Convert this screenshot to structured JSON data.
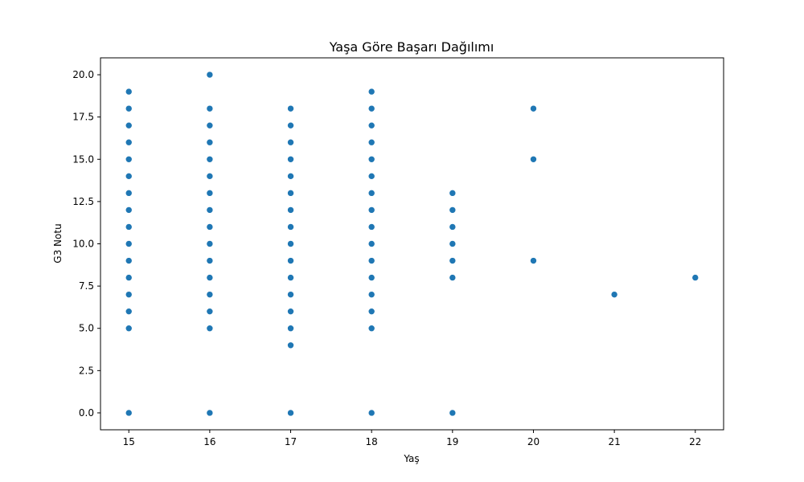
{
  "chart_data": {
    "type": "scatter",
    "title": "Yaşa Göre Başarı Dağılımı",
    "xlabel": "Yaş",
    "ylabel": "G3 Notu",
    "xlim": [
      14.65,
      22.35
    ],
    "ylim": [
      -1.0,
      21.0
    ],
    "xticks": [
      15,
      16,
      17,
      18,
      19,
      20,
      21,
      22
    ],
    "xtick_labels": [
      "15",
      "16",
      "17",
      "18",
      "19",
      "20",
      "21",
      "22"
    ],
    "yticks": [
      0,
      2.5,
      5,
      7.5,
      10,
      12.5,
      15,
      17.5,
      20
    ],
    "ytick_labels": [
      "0.0",
      "2.5",
      "5.0",
      "7.5",
      "10.0",
      "12.5",
      "15.0",
      "17.5",
      "20.0"
    ],
    "grid": false,
    "marker_color": "#1f77b4",
    "series": [
      {
        "points": [
          [
            15,
            0
          ],
          [
            15,
            5
          ],
          [
            15,
            6
          ],
          [
            15,
            7
          ],
          [
            15,
            8
          ],
          [
            15,
            9
          ],
          [
            15,
            10
          ],
          [
            15,
            11
          ],
          [
            15,
            12
          ],
          [
            15,
            13
          ],
          [
            15,
            14
          ],
          [
            15,
            15
          ],
          [
            15,
            16
          ],
          [
            15,
            17
          ],
          [
            15,
            18
          ],
          [
            15,
            19
          ],
          [
            16,
            0
          ],
          [
            16,
            5
          ],
          [
            16,
            6
          ],
          [
            16,
            7
          ],
          [
            16,
            8
          ],
          [
            16,
            9
          ],
          [
            16,
            10
          ],
          [
            16,
            11
          ],
          [
            16,
            12
          ],
          [
            16,
            13
          ],
          [
            16,
            14
          ],
          [
            16,
            15
          ],
          [
            16,
            16
          ],
          [
            16,
            17
          ],
          [
            16,
            18
          ],
          [
            16,
            20
          ],
          [
            17,
            0
          ],
          [
            17,
            4
          ],
          [
            17,
            5
          ],
          [
            17,
            6
          ],
          [
            17,
            7
          ],
          [
            17,
            8
          ],
          [
            17,
            9
          ],
          [
            17,
            10
          ],
          [
            17,
            11
          ],
          [
            17,
            12
          ],
          [
            17,
            13
          ],
          [
            17,
            14
          ],
          [
            17,
            15
          ],
          [
            17,
            16
          ],
          [
            17,
            17
          ],
          [
            17,
            18
          ],
          [
            18,
            0
          ],
          [
            18,
            5
          ],
          [
            18,
            6
          ],
          [
            18,
            7
          ],
          [
            18,
            8
          ],
          [
            18,
            9
          ],
          [
            18,
            10
          ],
          [
            18,
            11
          ],
          [
            18,
            12
          ],
          [
            18,
            13
          ],
          [
            18,
            14
          ],
          [
            18,
            15
          ],
          [
            18,
            16
          ],
          [
            18,
            17
          ],
          [
            18,
            18
          ],
          [
            18,
            19
          ],
          [
            19,
            0
          ],
          [
            19,
            8
          ],
          [
            19,
            9
          ],
          [
            19,
            10
          ],
          [
            19,
            11
          ],
          [
            19,
            12
          ],
          [
            19,
            13
          ],
          [
            20,
            9
          ],
          [
            20,
            15
          ],
          [
            20,
            18
          ],
          [
            21,
            7
          ],
          [
            22,
            8
          ]
        ]
      }
    ]
  }
}
